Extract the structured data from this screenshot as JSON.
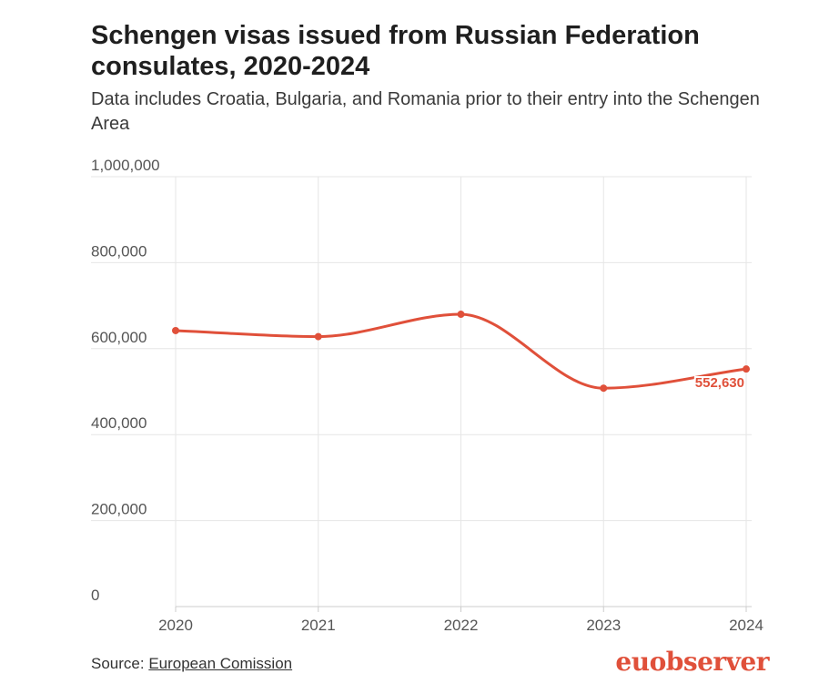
{
  "title": "Schengen visas issued from Russian Federation consulates, 2020-2024",
  "subtitle": "Data includes Croatia, Bulgaria, and Romania prior to their entry into the Schengen Area",
  "source": {
    "prefix": "Source: ",
    "link_text": "European Comission"
  },
  "brand": {
    "name": "euobserver",
    "color": "#e0503a"
  },
  "colors": {
    "line": "#e0503a",
    "grid": "#e6e6e6",
    "axis": "#cccccc"
  },
  "chart_data": {
    "type": "line",
    "title": "Schengen visas issued from Russian Federation consulates, 2020-2024",
    "subtitle": "Data includes Croatia, Bulgaria, and Romania prior to their entry into the Schengen Area",
    "xlabel": "",
    "ylabel": "",
    "categories": [
      "2020",
      "2021",
      "2022",
      "2023",
      "2024"
    ],
    "series": [
      {
        "name": "Schengen visas issued",
        "values": [
          642000,
          628000,
          680000,
          508000,
          552630
        ]
      }
    ],
    "ylim": [
      0,
      1000000
    ],
    "yticks": [
      0,
      200000,
      400000,
      600000,
      800000,
      1000000
    ],
    "ytick_labels": [
      "0",
      "200,000",
      "400,000",
      "600,000",
      "800,000",
      "1,000,000"
    ],
    "data_labels": [
      {
        "index": 4,
        "text": "552,630"
      }
    ],
    "grid": true,
    "legend": "none"
  }
}
